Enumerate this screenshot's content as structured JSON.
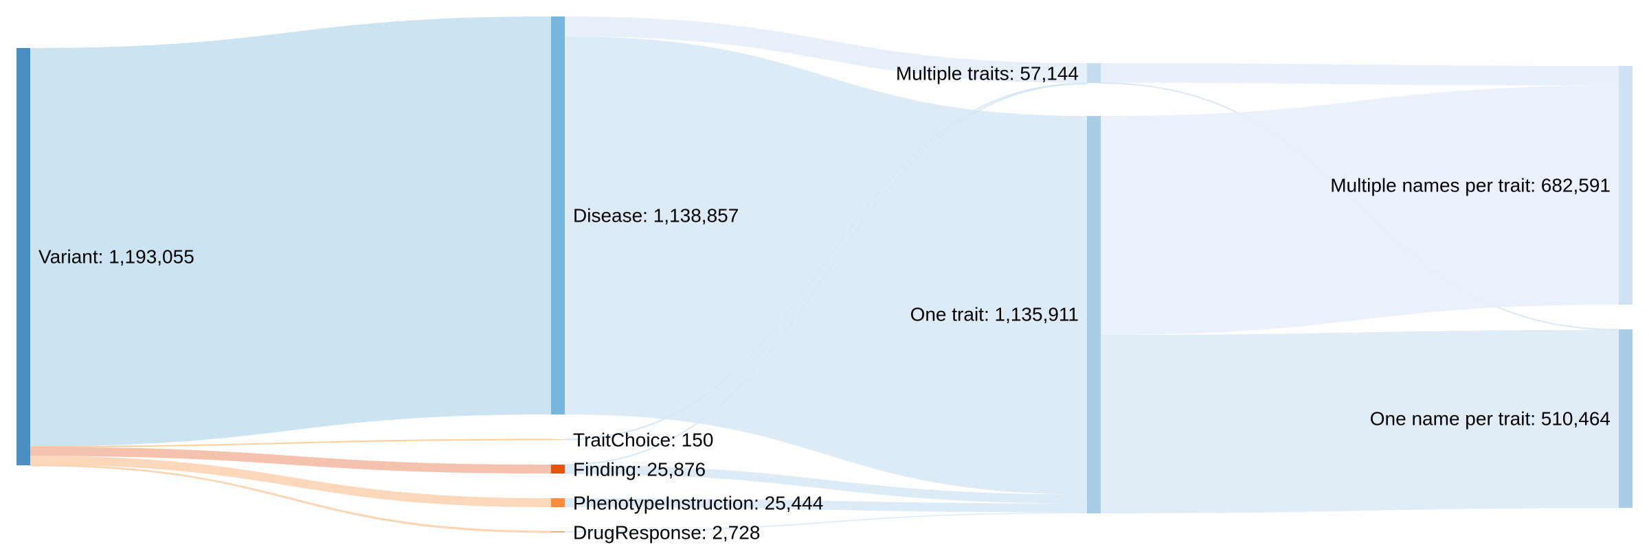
{
  "chart_data": {
    "type": "sankey",
    "title": "",
    "nodes": [
      {
        "id": "variant",
        "label": "Variant: 1,193,055",
        "value": 1193055,
        "color": "#4a8fc4"
      },
      {
        "id": "disease",
        "label": "Disease: 1,138,857",
        "value": 1138857,
        "color": "#79b6dc"
      },
      {
        "id": "traitchoice",
        "label": "TraitChoice: 150",
        "value": 150,
        "color": "#fdd0a2"
      },
      {
        "id": "finding",
        "label": "Finding: 25,876",
        "value": 25876,
        "color": "#e6550d"
      },
      {
        "id": "phenotype",
        "label": "PhenotypeInstruction: 25,444",
        "value": 25444,
        "color": "#fd8d3c"
      },
      {
        "id": "drugresponse",
        "label": "DrugResponse: 2,728",
        "value": 2728,
        "color": "#fdae6b"
      },
      {
        "id": "multiple_traits",
        "label": "Multiple traits: 57,144",
        "value": 57144,
        "color": "#c6dcef"
      },
      {
        "id": "one_trait",
        "label": "One trait: 1,135,911",
        "value": 1135911,
        "color": "#a8cde4"
      },
      {
        "id": "multiple_names",
        "label": "Multiple names per trait: 682,591",
        "value": 682591,
        "color": "#cfe1f2"
      },
      {
        "id": "one_name",
        "label": "One name per trait: 510,464",
        "value": 510464,
        "color": "#a8cde4"
      }
    ],
    "links": [
      {
        "source": "variant",
        "target": "disease",
        "value": 1138857,
        "color": "#c3def0"
      },
      {
        "source": "variant",
        "target": "traitchoice",
        "value": 150,
        "color": "#fdd0a2"
      },
      {
        "source": "variant",
        "target": "finding",
        "value": 25876,
        "color": "#f3b89f"
      },
      {
        "source": "variant",
        "target": "phenotype",
        "value": 25444,
        "color": "#fdd0ae"
      },
      {
        "source": "variant",
        "target": "drugresponse",
        "value": 2728,
        "color": "#fdd3b0"
      },
      {
        "source": "disease",
        "target": "multiple_traits",
        "value": 56900,
        "color": "#e3edf8"
      },
      {
        "source": "disease",
        "target": "one_trait",
        "value": 1081957,
        "color": "#d6e8f4"
      },
      {
        "source": "traitchoice",
        "target": "multiple_traits",
        "value": 150,
        "color": "#d6e8f4"
      },
      {
        "source": "finding",
        "target": "multiple_traits",
        "value": 94,
        "color": "#d6e8f4"
      },
      {
        "source": "finding",
        "target": "one_trait",
        "value": 25782,
        "color": "#d6e8f4"
      },
      {
        "source": "phenotype",
        "target": "one_trait",
        "value": 25444,
        "color": "#d6e8f4"
      },
      {
        "source": "drugresponse",
        "target": "one_trait",
        "value": 2728,
        "color": "#d6e8f4"
      },
      {
        "source": "multiple_traits",
        "target": "multiple_names",
        "value": 56591,
        "color": "#e4edf8"
      },
      {
        "source": "multiple_traits",
        "target": "one_name",
        "value": 553,
        "color": "#dbe8f4"
      },
      {
        "source": "one_trait",
        "target": "multiple_names",
        "value": 626000,
        "color": "#e7eff9"
      },
      {
        "source": "one_trait",
        "target": "one_name",
        "value": 509911,
        "color": "#dbe9f4"
      }
    ]
  }
}
